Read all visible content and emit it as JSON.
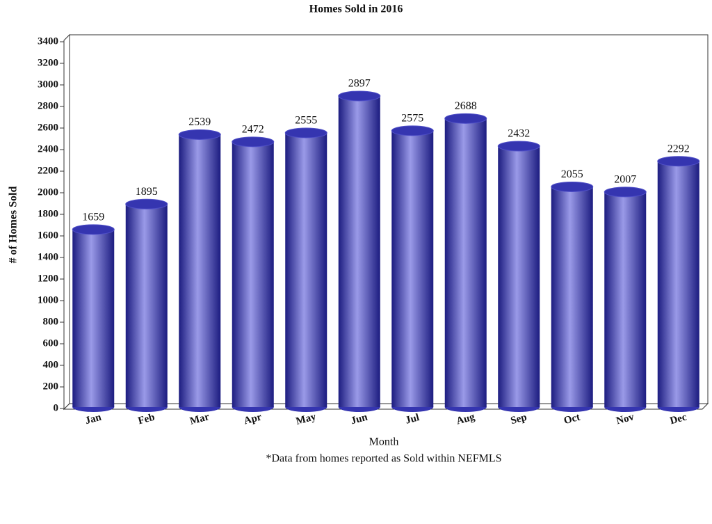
{
  "chart_data": {
    "type": "bar",
    "title": "Homes Sold in 2016",
    "x_label": "Month",
    "y_label": "# of Homes Sold",
    "note": "*Data from homes reported as Sold within NEFMLS",
    "categories": [
      "Jan",
      "Feb",
      "Mar",
      "Apr",
      "May",
      "Jun",
      "Jul",
      "Aug",
      "Sep",
      "Oct",
      "Nov",
      "Dec"
    ],
    "values": [
      1659,
      1895,
      2539,
      2472,
      2555,
      2897,
      2575,
      2688,
      2432,
      2055,
      2007,
      2292
    ],
    "color": "#3535b0",
    "ylim": [
      0,
      3400
    ],
    "yticks": [
      0,
      200,
      400,
      600,
      800,
      1000,
      1200,
      1400,
      1600,
      1800,
      2000,
      2200,
      2400,
      2600,
      2800,
      3000,
      3200,
      3400
    ],
    "grid": false
  }
}
